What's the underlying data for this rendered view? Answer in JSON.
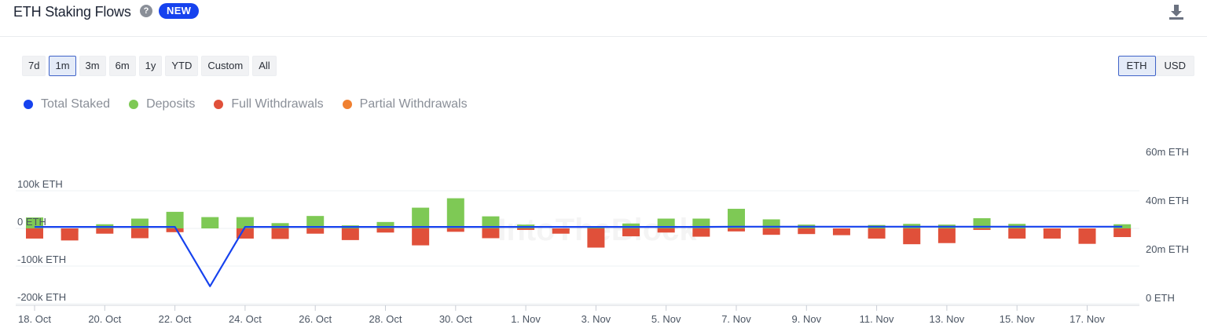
{
  "header": {
    "title": "ETH Staking Flows",
    "badge": "NEW"
  },
  "icons": {
    "help": "help-icon",
    "download": "download-icon"
  },
  "ranges": [
    "7d",
    "1m",
    "3m",
    "6m",
    "1y",
    "YTD",
    "Custom",
    "All"
  ],
  "selected_range": "1m",
  "units": [
    "ETH",
    "USD"
  ],
  "selected_unit": "ETH",
  "watermark": "IntoTheBlock",
  "legend": [
    {
      "label": "Total Staked",
      "color": "#1642ee"
    },
    {
      "label": "Deposits",
      "color": "#7ec955"
    },
    {
      "label": "Full Withdrawals",
      "color": "#e0503a"
    },
    {
      "label": "Partial Withdrawals",
      "color": "#f08030"
    }
  ],
  "chart_data": {
    "type": "bar",
    "categories": [
      "18. Oct",
      "19. Oct",
      "20. Oct",
      "21. Oct",
      "22. Oct",
      "23. Oct",
      "24. Oct",
      "25. Oct",
      "26. Oct",
      "27. Oct",
      "28. Oct",
      "29. Oct",
      "30. Oct",
      "31. Oct",
      "1. Nov",
      "2. Nov",
      "3. Nov",
      "4. Nov",
      "5. Nov",
      "6. Nov",
      "7. Nov",
      "8. Nov",
      "9. Nov",
      "10. Nov",
      "11. Nov",
      "12. Nov",
      "13. Nov",
      "14. Nov",
      "15. Nov",
      "16. Nov",
      "17. Nov",
      "18. Nov"
    ],
    "x_tick_labels": [
      "18. Oct",
      "20. Oct",
      "22. Oct",
      "24. Oct",
      "26. Oct",
      "28. Oct",
      "30. Oct",
      "1. Nov",
      "3. Nov",
      "5. Nov",
      "7. Nov",
      "9. Nov",
      "11. Nov",
      "13. Nov",
      "15. Nov",
      "17. Nov"
    ],
    "series": [
      {
        "name": "Deposits",
        "color": "#7ec955",
        "axis": "left",
        "values": [
          29000,
          -9000,
          11000,
          26000,
          44000,
          30000,
          30000,
          14000,
          33000,
          8000,
          17000,
          55000,
          80000,
          32000,
          10000,
          -5000,
          6000,
          13000,
          26000,
          26000,
          52000,
          24000,
          10000,
          -4000,
          9000,
          12000,
          10000,
          27000,
          12000,
          -6000,
          -6000,
          11000
        ]
      },
      {
        "name": "Full Withdrawals",
        "color": "#e0503a",
        "axis": "left",
        "values": [
          -27000,
          -32000,
          -14000,
          -26000,
          -10000,
          0,
          -27000,
          -28000,
          -14000,
          -31000,
          -11000,
          -45000,
          -9000,
          -26000,
          -4000,
          -14000,
          -51000,
          -21000,
          -11000,
          -22000,
          -8000,
          -17000,
          -15000,
          -18000,
          -27000,
          -42000,
          -39000,
          -4000,
          -27000,
          -27000,
          -41000,
          -23000
        ]
      },
      {
        "name": "Partial Withdrawals",
        "color": "#f08030",
        "axis": "left",
        "values": [
          0,
          0,
          0,
          0,
          0,
          0,
          0,
          0,
          0,
          0,
          0,
          0,
          0,
          0,
          0,
          0,
          0,
          0,
          0,
          0,
          0,
          0,
          0,
          0,
          0,
          0,
          0,
          0,
          0,
          0,
          0,
          0
        ]
      },
      {
        "name": "Total Staked",
        "color": "#1642ee",
        "axis": "right",
        "type": "line",
        "values": [
          31900000,
          31900000,
          31900000,
          31900000,
          31900000,
          7500000,
          31900000,
          31900000,
          31900000,
          31900000,
          31900000,
          31900000,
          31900000,
          31900000,
          31900000,
          31900000,
          31900000,
          31900000,
          31900000,
          31900000,
          32000000,
          32000000,
          32000000,
          32000000,
          32000000,
          32000000,
          32000000,
          32000000,
          32000000,
          32000000,
          32000000,
          32000000
        ]
      }
    ],
    "left_axis": {
      "ticks": [
        100000,
        0,
        -100000,
        -200000
      ],
      "tick_labels": [
        "100k ETH",
        "0 ETH",
        "-100k ETH",
        "-200k ETH"
      ],
      "ylim": [
        -200000,
        100000
      ]
    },
    "right_axis": {
      "ticks": [
        60000000,
        40000000,
        20000000,
        0
      ],
      "tick_labels": [
        "60m ETH",
        "40m ETH",
        "20m ETH",
        "0 ETH"
      ],
      "ylim": [
        0,
        60000000
      ]
    },
    "grid": true,
    "legend_position": "top-left"
  }
}
